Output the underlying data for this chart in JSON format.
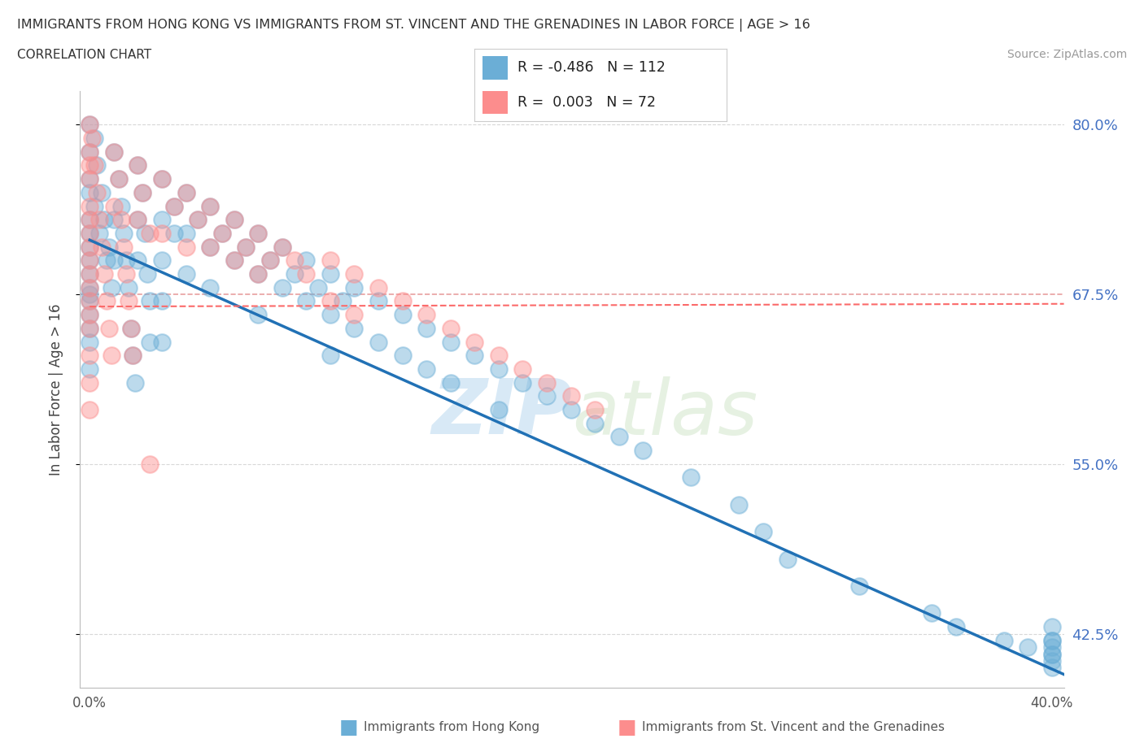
{
  "title": "IMMIGRANTS FROM HONG KONG VS IMMIGRANTS FROM ST. VINCENT AND THE GRENADINES IN LABOR FORCE | AGE > 16",
  "subtitle": "CORRELATION CHART",
  "source": "Source: ZipAtlas.com",
  "ylabel": "In Labor Force | Age > 16",
  "xlim": [
    -0.004,
    0.405
  ],
  "ylim": [
    0.385,
    0.825
  ],
  "yticks": [
    0.425,
    0.55,
    0.675,
    0.8
  ],
  "ytick_labels": [
    "42.5%",
    "55.0%",
    "67.5%",
    "80.0%"
  ],
  "xticks": [
    0.0,
    0.1,
    0.2,
    0.3,
    0.4
  ],
  "xtick_labels": [
    "0.0%",
    "",
    "",
    "",
    "40.0%"
  ],
  "hk_R": -0.486,
  "hk_N": 112,
  "sv_R": 0.003,
  "sv_N": 72,
  "hk_color": "#6baed6",
  "sv_color": "#fc8d8d",
  "hk_line_color": "#2171b5",
  "sv_line_color": "#fb6a6a",
  "watermark_zip": "ZIP",
  "watermark_atlas": "atlas",
  "background_color": "#ffffff",
  "ref_line_y": 0.675,
  "hk_trend_x0": 0.0,
  "hk_trend_y0": 0.715,
  "hk_trend_x1": 0.405,
  "hk_trend_y1": 0.395,
  "sv_trend_x0": 0.0,
  "sv_trend_y0": 0.666,
  "sv_trend_x1": 0.405,
  "sv_trend_y1": 0.668,
  "hk_scatter_x": [
    0.0,
    0.0,
    0.0,
    0.0,
    0.0,
    0.0,
    0.0,
    0.0,
    0.0,
    0.0,
    0.0,
    0.0,
    0.0,
    0.0,
    0.0,
    0.0,
    0.002,
    0.002,
    0.003,
    0.004,
    0.005,
    0.006,
    0.007,
    0.008,
    0.009,
    0.01,
    0.01,
    0.01,
    0.012,
    0.013,
    0.014,
    0.015,
    0.016,
    0.017,
    0.018,
    0.019,
    0.02,
    0.02,
    0.02,
    0.022,
    0.023,
    0.024,
    0.025,
    0.025,
    0.03,
    0.03,
    0.03,
    0.03,
    0.03,
    0.035,
    0.035,
    0.04,
    0.04,
    0.04,
    0.045,
    0.05,
    0.05,
    0.05,
    0.055,
    0.06,
    0.06,
    0.065,
    0.07,
    0.07,
    0.07,
    0.075,
    0.08,
    0.08,
    0.085,
    0.09,
    0.09,
    0.095,
    0.1,
    0.1,
    0.1,
    0.105,
    0.11,
    0.11,
    0.12,
    0.12,
    0.13,
    0.13,
    0.14,
    0.14,
    0.15,
    0.15,
    0.16,
    0.17,
    0.17,
    0.18,
    0.19,
    0.2,
    0.21,
    0.22,
    0.23,
    0.25,
    0.27,
    0.28,
    0.29,
    0.32,
    0.35,
    0.36,
    0.38,
    0.39,
    0.4,
    0.4,
    0.4,
    0.4,
    0.4,
    0.4,
    0.4,
    0.4
  ],
  "hk_scatter_y": [
    0.8,
    0.78,
    0.76,
    0.75,
    0.73,
    0.72,
    0.71,
    0.7,
    0.69,
    0.68,
    0.675,
    0.67,
    0.66,
    0.65,
    0.64,
    0.62,
    0.79,
    0.74,
    0.77,
    0.72,
    0.75,
    0.73,
    0.7,
    0.71,
    0.68,
    0.78,
    0.73,
    0.7,
    0.76,
    0.74,
    0.72,
    0.7,
    0.68,
    0.65,
    0.63,
    0.61,
    0.77,
    0.73,
    0.7,
    0.75,
    0.72,
    0.69,
    0.67,
    0.64,
    0.76,
    0.73,
    0.7,
    0.67,
    0.64,
    0.74,
    0.72,
    0.75,
    0.72,
    0.69,
    0.73,
    0.74,
    0.71,
    0.68,
    0.72,
    0.73,
    0.7,
    0.71,
    0.72,
    0.69,
    0.66,
    0.7,
    0.71,
    0.68,
    0.69,
    0.7,
    0.67,
    0.68,
    0.69,
    0.66,
    0.63,
    0.67,
    0.68,
    0.65,
    0.67,
    0.64,
    0.66,
    0.63,
    0.65,
    0.62,
    0.64,
    0.61,
    0.63,
    0.62,
    0.59,
    0.61,
    0.6,
    0.59,
    0.58,
    0.57,
    0.56,
    0.54,
    0.52,
    0.5,
    0.48,
    0.46,
    0.44,
    0.43,
    0.42,
    0.415,
    0.43,
    0.42,
    0.41,
    0.4,
    0.405,
    0.41,
    0.415,
    0.42
  ],
  "sv_scatter_x": [
    0.0,
    0.0,
    0.0,
    0.0,
    0.0,
    0.0,
    0.0,
    0.0,
    0.0,
    0.0,
    0.0,
    0.0,
    0.0,
    0.0,
    0.0,
    0.0,
    0.0,
    0.001,
    0.002,
    0.003,
    0.004,
    0.005,
    0.006,
    0.007,
    0.008,
    0.009,
    0.01,
    0.01,
    0.012,
    0.013,
    0.014,
    0.015,
    0.016,
    0.017,
    0.018,
    0.02,
    0.02,
    0.022,
    0.025,
    0.025,
    0.03,
    0.03,
    0.035,
    0.04,
    0.04,
    0.045,
    0.05,
    0.05,
    0.055,
    0.06,
    0.06,
    0.065,
    0.07,
    0.07,
    0.075,
    0.08,
    0.085,
    0.09,
    0.1,
    0.1,
    0.11,
    0.11,
    0.12,
    0.13,
    0.14,
    0.15,
    0.16,
    0.17,
    0.18,
    0.19,
    0.2,
    0.21
  ],
  "sv_scatter_y": [
    0.8,
    0.78,
    0.77,
    0.76,
    0.74,
    0.73,
    0.72,
    0.71,
    0.7,
    0.69,
    0.68,
    0.67,
    0.66,
    0.65,
    0.63,
    0.61,
    0.59,
    0.79,
    0.77,
    0.75,
    0.73,
    0.71,
    0.69,
    0.67,
    0.65,
    0.63,
    0.78,
    0.74,
    0.76,
    0.73,
    0.71,
    0.69,
    0.67,
    0.65,
    0.63,
    0.77,
    0.73,
    0.75,
    0.72,
    0.55,
    0.76,
    0.72,
    0.74,
    0.75,
    0.71,
    0.73,
    0.74,
    0.71,
    0.72,
    0.73,
    0.7,
    0.71,
    0.72,
    0.69,
    0.7,
    0.71,
    0.7,
    0.69,
    0.7,
    0.67,
    0.69,
    0.66,
    0.68,
    0.67,
    0.66,
    0.65,
    0.64,
    0.63,
    0.62,
    0.61,
    0.6,
    0.59
  ]
}
